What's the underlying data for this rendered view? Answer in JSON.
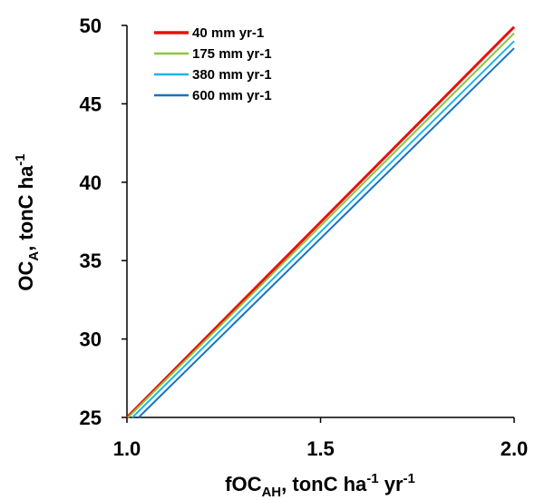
{
  "chart_data": {
    "type": "line",
    "x_label": [
      "fOC",
      "AH",
      ", tonC ha",
      "-1",
      " yr",
      "-1"
    ],
    "y_label": [
      "OC",
      "A",
      ", tonC ha",
      "-1"
    ],
    "xlim": [
      1.0,
      2.0
    ],
    "ylim": [
      25,
      50
    ],
    "xticks": [
      {
        "value": 1.0,
        "label": "1.0"
      },
      {
        "value": 1.5,
        "label": "1.5"
      },
      {
        "value": 2.0,
        "label": "2.0"
      }
    ],
    "yticks": [
      25,
      30,
      35,
      40,
      45,
      50
    ],
    "legend": "top-left",
    "series": [
      {
        "name": "40 mm yr-1",
        "color": "#e8100f",
        "x": [
          1.0,
          2.0
        ],
        "values": [
          25,
          49.9
        ]
      },
      {
        "name": "175 mm yr-1",
        "color": "#8dc63f",
        "x": [
          1.003,
          2.0
        ],
        "values": [
          25,
          49.5
        ]
      },
      {
        "name": "380 mm yr-1",
        "color": "#1fb4ea",
        "x": [
          1.014,
          2.0
        ],
        "values": [
          25,
          49.0
        ]
      },
      {
        "name": "600 mm yr-1",
        "color": "#1a72c0",
        "x": [
          1.03,
          2.0
        ],
        "values": [
          25,
          48.55
        ]
      }
    ]
  }
}
